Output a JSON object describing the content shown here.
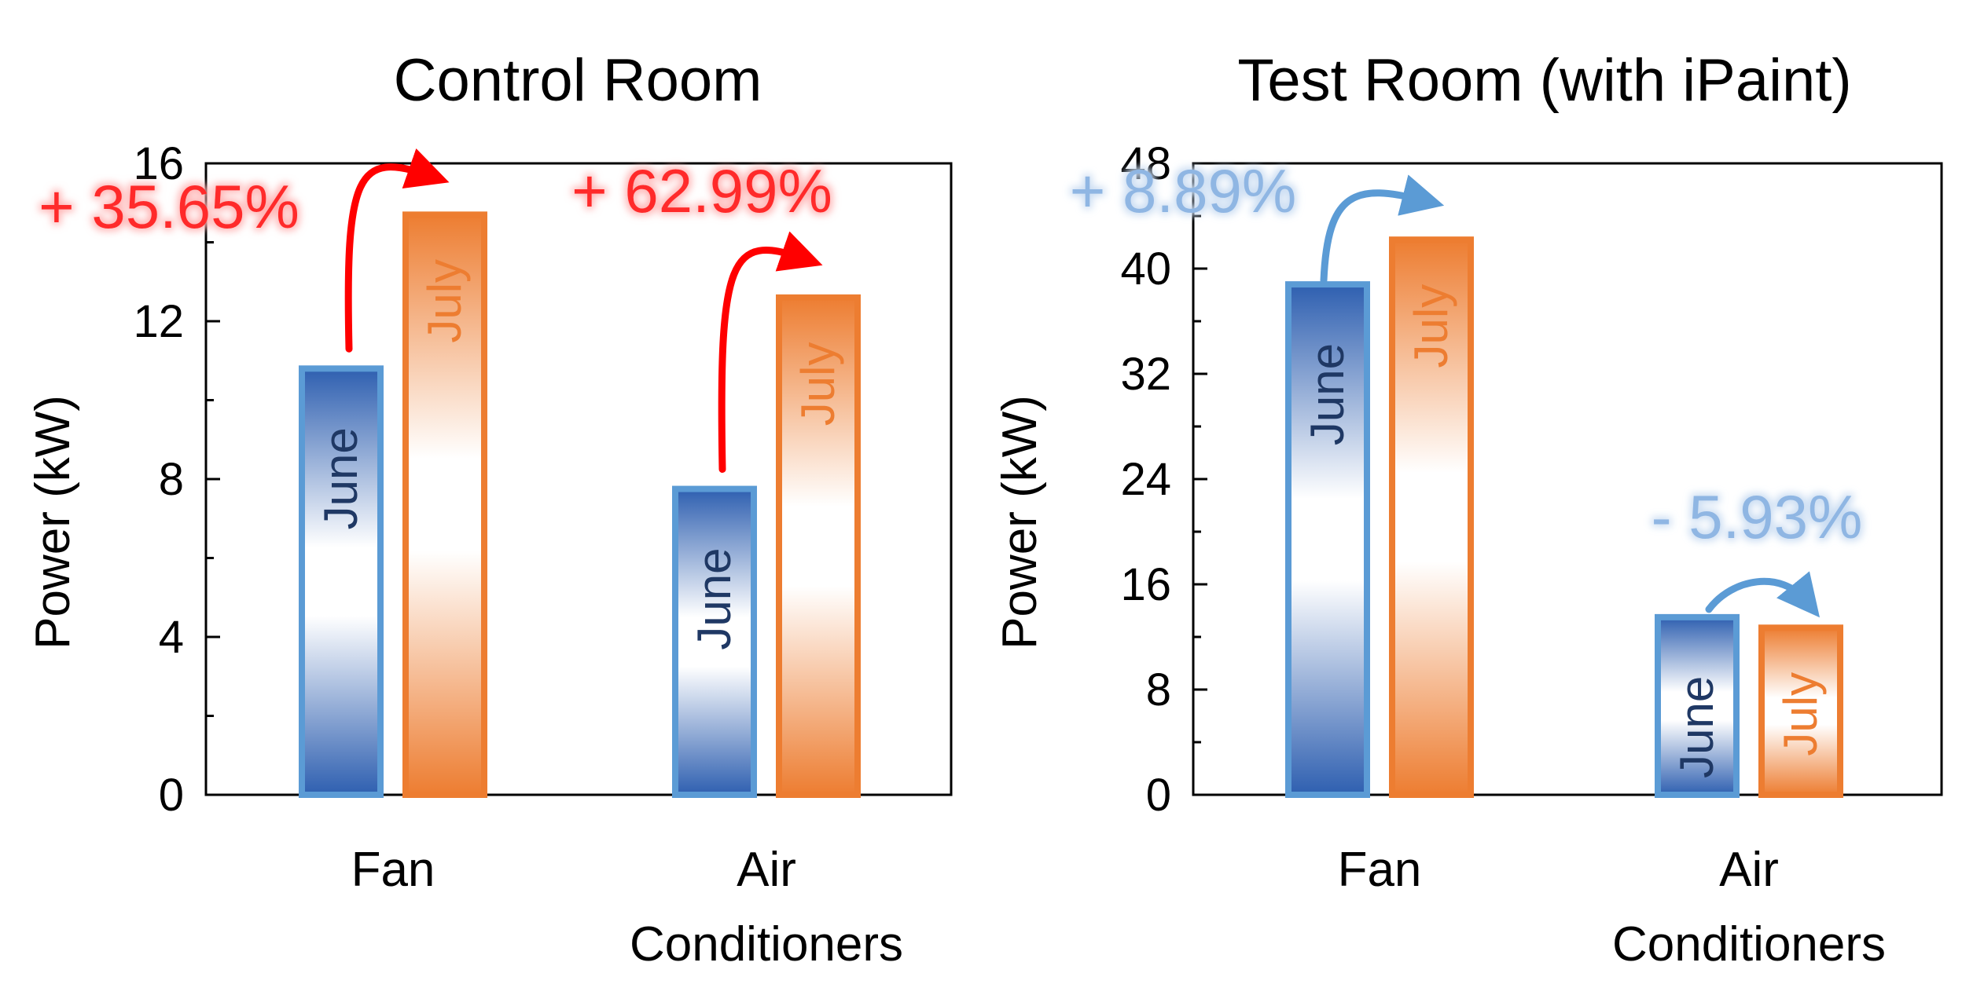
{
  "colors": {
    "june": "#2e5fb0",
    "june_light": "#5b9bd5",
    "july": "#ed7d31",
    "july_light": "#f4a36a",
    "increase_arrow": "#ff0000",
    "test_arrow": "#5b9bd5",
    "june_text": "#1f3864",
    "july_text": "#ed7d31"
  },
  "chart_data": [
    {
      "type": "bar",
      "title": "Control Room",
      "ylabel": "Power (kW)",
      "xlabel": "",
      "ylim": [
        0,
        16
      ],
      "yticks": [
        "0",
        "4",
        "8",
        "12",
        "16"
      ],
      "minor_ticks": true,
      "grid": false,
      "categories": [
        "Fan",
        "Air\nConditioners"
      ],
      "category_lines": [
        [
          "Fan"
        ],
        [
          "Air",
          "Conditioners"
        ]
      ],
      "series": [
        {
          "name": "June",
          "values": [
            10.8,
            7.75
          ]
        },
        {
          "name": "July",
          "values": [
            14.7,
            12.6
          ]
        }
      ],
      "changes": [
        "+ 35.65%",
        "+ 62.99%"
      ]
    },
    {
      "type": "bar",
      "title": "Test Room (with iPaint)",
      "ylabel": "Power (kW)",
      "xlabel": "",
      "ylim": [
        0,
        48
      ],
      "yticks": [
        "0",
        "8",
        "16",
        "24",
        "32",
        "40",
        "48"
      ],
      "minor_ticks": true,
      "grid": false,
      "categories": [
        "Fan",
        "Air\nConditioners"
      ],
      "category_lines": [
        [
          "Fan"
        ],
        [
          "Air",
          "Conditioners"
        ]
      ],
      "series": [
        {
          "name": "June",
          "values": [
            38.8,
            13.5
          ]
        },
        {
          "name": "July",
          "values": [
            42.2,
            12.7
          ]
        }
      ],
      "changes": [
        "+ 8.89%",
        "- 5.93%"
      ]
    }
  ]
}
